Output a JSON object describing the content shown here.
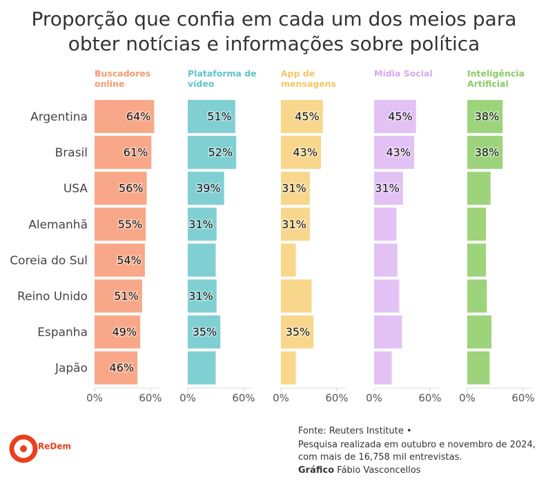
{
  "chart_data": {
    "type": "bar",
    "orientation": "horizontal",
    "title": "Proporção que confia em cada um dos meios para\nobter notícias e informações sobre política",
    "categories": [
      "Argentina",
      "Brasil",
      "USA",
      "Alemanhã",
      "Coreia do Sul",
      "Reino Unido",
      "Espanha",
      "Japão"
    ],
    "series": [
      {
        "name": "Buscadores\nonline",
        "color": "#f8a888",
        "label_color": "#f39a72",
        "values": [
          64,
          61,
          56,
          55,
          54,
          51,
          49,
          46
        ],
        "value_labels": [
          "64%",
          "61%",
          "56%",
          "55%",
          "54%",
          "51%",
          "49%",
          "46%"
        ]
      },
      {
        "name": "Plataforma de\nvídeo",
        "color": "#80cfd3",
        "label_color": "#5fc4c9",
        "values": [
          51,
          52,
          39,
          31,
          30,
          31,
          35,
          30
        ],
        "value_labels": [
          "51%",
          "52%",
          "39%",
          "31%",
          null,
          "31%",
          "35%",
          null
        ]
      },
      {
        "name": "App de\nmensagens",
        "color": "#f8d68c",
        "label_color": "#f3c766",
        "values": [
          45,
          43,
          31,
          31,
          16,
          33,
          35,
          16
        ],
        "value_labels": [
          "45%",
          "43%",
          "31%",
          "31%",
          null,
          null,
          "35%",
          null
        ]
      },
      {
        "name": "Mídia Social",
        "color": "#e2c2f5",
        "label_color": "#d5a9ef",
        "values": [
          45,
          43,
          31,
          24,
          25,
          27,
          30,
          19
        ],
        "value_labels": [
          "45%",
          "43%",
          "31%",
          null,
          null,
          null,
          null,
          null
        ]
      },
      {
        "name": "Inteligência\nArtificial",
        "color": "#9dd37b",
        "label_color": "#8acb66",
        "values": [
          38,
          38,
          25,
          20,
          20,
          21,
          26,
          24
        ],
        "value_labels": [
          "38%",
          "38%",
          null,
          null,
          null,
          null,
          null,
          null
        ]
      }
    ],
    "xlim": [
      0,
      70
    ],
    "xticks": [
      {
        "value": 0,
        "label": "0%"
      },
      {
        "value": 60,
        "label": "60%"
      }
    ],
    "source": "Fonte: Reuters Institute •",
    "note_lines": [
      "Pesquisa realizada em outubro e novembro de 2024,",
      "com mais de 16,758 mil entrevistas."
    ],
    "credit_label": "Gráfico",
    "credit_name": "Fábio Vasconcellos",
    "logo": "ReDem"
  }
}
